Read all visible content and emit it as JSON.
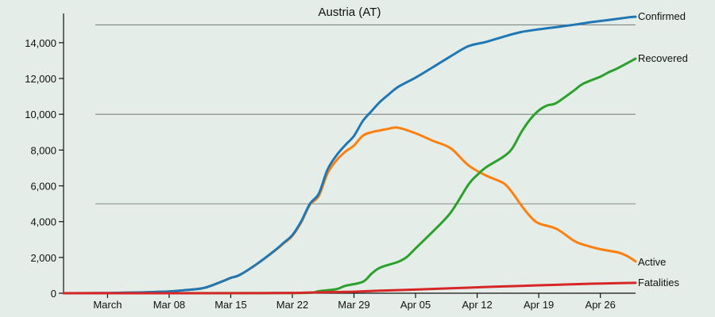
{
  "chart_data": {
    "type": "line",
    "title": "Austria (AT)",
    "x_axis": {
      "start_date": "2020-02-25",
      "end_date": "2020-04-30",
      "ticks": [
        {
          "date": "2020-03-01",
          "label": "March"
        },
        {
          "date": "2020-03-08",
          "label": "Mar 08"
        },
        {
          "date": "2020-03-15",
          "label": "Mar 15"
        },
        {
          "date": "2020-03-22",
          "label": "Mar 22"
        },
        {
          "date": "2020-03-29",
          "label": "Mar 29"
        },
        {
          "date": "2020-04-05",
          "label": "Apr 05"
        },
        {
          "date": "2020-04-12",
          "label": "Apr 12"
        },
        {
          "date": "2020-04-19",
          "label": "Apr 19"
        },
        {
          "date": "2020-04-26",
          "label": "Apr 26"
        }
      ]
    },
    "y_axis": {
      "ylim": [
        0,
        15500
      ],
      "ticks": [
        0,
        2000,
        4000,
        6000,
        8000,
        10000,
        12000,
        14000
      ],
      "tick_labels": [
        "0",
        "2,000",
        "4,000",
        "6,000",
        "8,000",
        "10,000",
        "12,000",
        "14,000"
      ],
      "gridlines": [
        5000,
        10000,
        15000
      ]
    },
    "series": [
      {
        "name": "Confirmed",
        "color": "#1f77b4",
        "points": [
          [
            "2020-02-25",
            2
          ],
          [
            "2020-03-01",
            14
          ],
          [
            "2020-03-04",
            40
          ],
          [
            "2020-03-08",
            104
          ],
          [
            "2020-03-10",
            182
          ],
          [
            "2020-03-12",
            302
          ],
          [
            "2020-03-14",
            655
          ],
          [
            "2020-03-15",
            860
          ],
          [
            "2020-03-16",
            1018
          ],
          [
            "2020-03-18",
            1646
          ],
          [
            "2020-03-20",
            2388
          ],
          [
            "2020-03-21",
            2814
          ],
          [
            "2020-03-22",
            3244
          ],
          [
            "2020-03-23",
            4014
          ],
          [
            "2020-03-24",
            5000
          ],
          [
            "2020-03-25",
            5560
          ],
          [
            "2020-03-26",
            6909
          ],
          [
            "2020-03-27",
            7697
          ],
          [
            "2020-03-28",
            8271
          ],
          [
            "2020-03-29",
            8788
          ],
          [
            "2020-03-30",
            9618
          ],
          [
            "2020-03-31",
            10182
          ],
          [
            "2020-04-01",
            10711
          ],
          [
            "2020-04-02",
            11129
          ],
          [
            "2020-04-03",
            11524
          ],
          [
            "2020-04-05",
            12051
          ],
          [
            "2020-04-07",
            12640
          ],
          [
            "2020-04-09",
            13244
          ],
          [
            "2020-04-11",
            13806
          ],
          [
            "2020-04-13",
            14041
          ],
          [
            "2020-04-15",
            14336
          ],
          [
            "2020-04-17",
            14595
          ],
          [
            "2020-04-19",
            14749
          ],
          [
            "2020-04-21",
            14873
          ],
          [
            "2020-04-23",
            15002
          ],
          [
            "2020-04-25",
            15148
          ],
          [
            "2020-04-27",
            15274
          ],
          [
            "2020-04-29",
            15402
          ],
          [
            "2020-04-30",
            15452
          ]
        ]
      },
      {
        "name": "Recovered",
        "color": "#2ca02c",
        "points": [
          [
            "2020-02-25",
            0
          ],
          [
            "2020-03-15",
            6
          ],
          [
            "2020-03-20",
            9
          ],
          [
            "2020-03-24",
            28
          ],
          [
            "2020-03-25",
            112
          ],
          [
            "2020-03-27",
            225
          ],
          [
            "2020-03-28",
            410
          ],
          [
            "2020-03-30",
            636
          ],
          [
            "2020-03-31",
            1095
          ],
          [
            "2020-04-01",
            1436
          ],
          [
            "2020-04-03",
            1749
          ],
          [
            "2020-04-04",
            2022
          ],
          [
            "2020-04-05",
            2507
          ],
          [
            "2020-04-07",
            3463
          ],
          [
            "2020-04-09",
            4512
          ],
          [
            "2020-04-11",
            6064
          ],
          [
            "2020-04-12",
            6604
          ],
          [
            "2020-04-13",
            7033
          ],
          [
            "2020-04-15",
            7633
          ],
          [
            "2020-04-16",
            8098
          ],
          [
            "2020-04-17",
            8986
          ],
          [
            "2020-04-18",
            9704
          ],
          [
            "2020-04-19",
            10214
          ],
          [
            "2020-04-20",
            10501
          ],
          [
            "2020-04-21",
            10631
          ],
          [
            "2020-04-23",
            11328
          ],
          [
            "2020-04-24",
            11694
          ],
          [
            "2020-04-26",
            12103
          ],
          [
            "2020-04-27",
            12362
          ],
          [
            "2020-04-28",
            12580
          ],
          [
            "2020-04-30",
            13110
          ]
        ]
      },
      {
        "name": "Active",
        "color": "#ff7f0e",
        "points": [
          [
            "2020-02-25",
            2
          ],
          [
            "2020-03-01",
            14
          ],
          [
            "2020-03-04",
            40
          ],
          [
            "2020-03-08",
            104
          ],
          [
            "2020-03-10",
            182
          ],
          [
            "2020-03-12",
            302
          ],
          [
            "2020-03-14",
            655
          ],
          [
            "2020-03-15",
            854
          ],
          [
            "2020-03-16",
            1012
          ],
          [
            "2020-03-18",
            1640
          ],
          [
            "2020-03-20",
            2370
          ],
          [
            "2020-03-21",
            2780
          ],
          [
            "2020-03-22",
            3210
          ],
          [
            "2020-03-23",
            3960
          ],
          [
            "2020-03-24",
            4950
          ],
          [
            "2020-03-25",
            5430
          ],
          [
            "2020-03-26",
            6700
          ],
          [
            "2020-03-27",
            7420
          ],
          [
            "2020-03-28",
            7900
          ],
          [
            "2020-03-29",
            8250
          ],
          [
            "2020-03-30",
            8800
          ],
          [
            "2020-03-31",
            9000
          ],
          [
            "2020-04-01",
            9100
          ],
          [
            "2020-04-02",
            9200
          ],
          [
            "2020-04-03",
            9250
          ],
          [
            "2020-04-05",
            8940
          ],
          [
            "2020-04-07",
            8510
          ],
          [
            "2020-04-09",
            8100
          ],
          [
            "2020-04-11",
            7150
          ],
          [
            "2020-04-13",
            6580
          ],
          [
            "2020-04-15",
            6150
          ],
          [
            "2020-04-16",
            5620
          ],
          [
            "2020-04-17",
            4920
          ],
          [
            "2020-04-18",
            4310
          ],
          [
            "2020-04-19",
            3900
          ],
          [
            "2020-04-21",
            3600
          ],
          [
            "2020-04-23",
            2930
          ],
          [
            "2020-04-24",
            2730
          ],
          [
            "2020-04-26",
            2460
          ],
          [
            "2020-04-28",
            2280
          ],
          [
            "2020-04-29",
            2090
          ],
          [
            "2020-04-30",
            1780
          ]
        ]
      },
      {
        "name": "Fatalities",
        "color": "#d62728",
        "points": [
          [
            "2020-02-25",
            0
          ],
          [
            "2020-03-12",
            1
          ],
          [
            "2020-03-18",
            6
          ],
          [
            "2020-03-22",
            16
          ],
          [
            "2020-03-25",
            49
          ],
          [
            "2020-03-29",
            86
          ],
          [
            "2020-04-01",
            146
          ],
          [
            "2020-04-05",
            204
          ],
          [
            "2020-04-09",
            273
          ],
          [
            "2020-04-13",
            350
          ],
          [
            "2020-04-17",
            410
          ],
          [
            "2020-04-21",
            470
          ],
          [
            "2020-04-25",
            530
          ],
          [
            "2020-04-30",
            580
          ]
        ]
      }
    ]
  }
}
